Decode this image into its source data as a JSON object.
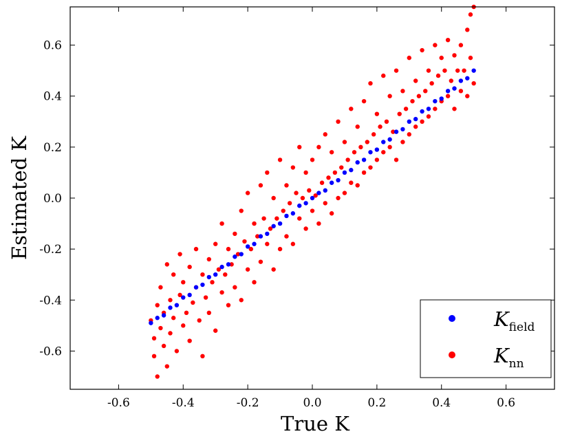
{
  "chart_data": {
    "type": "scatter",
    "title": "",
    "xlabel": "True K",
    "ylabel": "Estimated K",
    "xlim": [
      -0.75,
      0.75
    ],
    "ylim": [
      -0.75,
      0.75
    ],
    "xticks": [
      -0.6,
      -0.4,
      -0.2,
      0.0,
      0.2,
      0.4,
      0.6
    ],
    "yticks": [
      -0.6,
      -0.4,
      -0.2,
      0.0,
      0.2,
      0.4,
      0.6
    ],
    "xtick_labels": [
      "-0.6",
      "-0.4",
      "-0.2",
      "0.0",
      "0.2",
      "0.4",
      "0.6"
    ],
    "ytick_labels": [
      "-0.6",
      "-0.4",
      "-0.2",
      "0.0",
      "0.2",
      "0.4",
      "0.6"
    ],
    "grid": false,
    "legend_placement": "lower-right",
    "legend": [
      {
        "symbol": "K",
        "subscript": "field",
        "color": "#0000ff"
      },
      {
        "symbol": "K",
        "subscript": "nn",
        "color": "#ff0000"
      }
    ],
    "series": [
      {
        "color": "#ff0000",
        "points": [
          [
            -0.5,
            -0.48
          ],
          [
            -0.49,
            -0.55
          ],
          [
            -0.49,
            -0.62
          ],
          [
            -0.48,
            -0.7
          ],
          [
            -0.48,
            -0.42
          ],
          [
            -0.47,
            -0.51
          ],
          [
            -0.47,
            -0.35
          ],
          [
            -0.46,
            -0.58
          ],
          [
            -0.46,
            -0.45
          ],
          [
            -0.45,
            -0.26
          ],
          [
            -0.45,
            -0.66
          ],
          [
            -0.44,
            -0.4
          ],
          [
            -0.44,
            -0.53
          ],
          [
            -0.43,
            -0.3
          ],
          [
            -0.43,
            -0.47
          ],
          [
            -0.42,
            -0.6
          ],
          [
            -0.41,
            -0.38
          ],
          [
            -0.41,
            -0.22
          ],
          [
            -0.4,
            -0.5
          ],
          [
            -0.4,
            -0.33
          ],
          [
            -0.39,
            -0.45
          ],
          [
            -0.38,
            -0.56
          ],
          [
            -0.38,
            -0.27
          ],
          [
            -0.37,
            -0.41
          ],
          [
            -0.36,
            -0.2
          ],
          [
            -0.36,
            -0.35
          ],
          [
            -0.35,
            -0.48
          ],
          [
            -0.34,
            -0.3
          ],
          [
            -0.34,
            -0.62
          ],
          [
            -0.33,
            -0.39
          ],
          [
            -0.32,
            -0.24
          ],
          [
            -0.32,
            -0.45
          ],
          [
            -0.31,
            -0.33
          ],
          [
            -0.3,
            -0.18
          ],
          [
            -0.3,
            -0.52
          ],
          [
            -0.29,
            -0.28
          ],
          [
            -0.28,
            -0.37
          ],
          [
            -0.28,
            -0.1
          ],
          [
            -0.27,
            -0.3
          ],
          [
            -0.26,
            -0.2
          ],
          [
            -0.26,
            -0.42
          ],
          [
            -0.25,
            -0.26
          ],
          [
            -0.24,
            -0.14
          ],
          [
            -0.24,
            -0.35
          ],
          [
            -0.23,
            -0.22
          ],
          [
            -0.22,
            -0.05
          ],
          [
            -0.22,
            -0.4
          ],
          [
            -0.21,
            -0.17
          ],
          [
            -0.2,
            -0.28
          ],
          [
            -0.2,
            0.02
          ],
          [
            -0.19,
            -0.2
          ],
          [
            -0.18,
            -0.1
          ],
          [
            -0.18,
            -0.33
          ],
          [
            -0.17,
            -0.15
          ],
          [
            -0.16,
            0.05
          ],
          [
            -0.16,
            -0.25
          ],
          [
            -0.15,
            -0.08
          ],
          [
            -0.14,
            -0.18
          ],
          [
            -0.14,
            0.1
          ],
          [
            -0.13,
            -0.12
          ],
          [
            -0.12,
            -0.28
          ],
          [
            -0.12,
            0.0
          ],
          [
            -0.11,
            -0.08
          ],
          [
            -0.1,
            0.15
          ],
          [
            -0.1,
            -0.2
          ],
          [
            -0.09,
            -0.05
          ],
          [
            -0.08,
            0.05
          ],
          [
            -0.08,
            -0.15
          ],
          [
            -0.07,
            -0.02
          ],
          [
            -0.06,
            0.12
          ],
          [
            -0.06,
            -0.18
          ],
          [
            -0.05,
            0.02
          ],
          [
            -0.04,
            -0.08
          ],
          [
            -0.04,
            0.2
          ],
          [
            -0.03,
            0.0
          ],
          [
            -0.02,
            -0.12
          ],
          [
            -0.02,
            0.1
          ],
          [
            -0.01,
            0.03
          ],
          [
            0.0,
            -0.05
          ],
          [
            0.0,
            0.15
          ],
          [
            0.01,
            0.01
          ],
          [
            0.02,
            -0.1
          ],
          [
            0.02,
            0.2
          ],
          [
            0.03,
            0.06
          ],
          [
            0.04,
            -0.02
          ],
          [
            0.04,
            0.25
          ],
          [
            0.05,
            0.08
          ],
          [
            0.06,
            -0.06
          ],
          [
            0.06,
            0.18
          ],
          [
            0.07,
            0.1
          ],
          [
            0.08,
            0.0
          ],
          [
            0.08,
            0.3
          ],
          [
            0.09,
            0.12
          ],
          [
            0.1,
            0.02
          ],
          [
            0.1,
            0.22
          ],
          [
            0.11,
            0.15
          ],
          [
            0.12,
            0.06
          ],
          [
            0.12,
            0.35
          ],
          [
            0.13,
            0.18
          ],
          [
            0.14,
            0.05
          ],
          [
            0.14,
            0.28
          ],
          [
            0.15,
            0.2
          ],
          [
            0.16,
            0.1
          ],
          [
            0.16,
            0.38
          ],
          [
            0.17,
            0.22
          ],
          [
            0.18,
            0.12
          ],
          [
            0.18,
            0.45
          ],
          [
            0.19,
            0.25
          ],
          [
            0.2,
            0.15
          ],
          [
            0.2,
            0.33
          ],
          [
            0.21,
            0.28
          ],
          [
            0.22,
            0.18
          ],
          [
            0.22,
            0.48
          ],
          [
            0.23,
            0.3
          ],
          [
            0.24,
            0.2
          ],
          [
            0.24,
            0.4
          ],
          [
            0.25,
            0.26
          ],
          [
            0.26,
            0.15
          ],
          [
            0.26,
            0.5
          ],
          [
            0.27,
            0.33
          ],
          [
            0.28,
            0.22
          ],
          [
            0.28,
            0.42
          ],
          [
            0.29,
            0.35
          ],
          [
            0.3,
            0.25
          ],
          [
            0.3,
            0.55
          ],
          [
            0.31,
            0.38
          ],
          [
            0.32,
            0.28
          ],
          [
            0.32,
            0.46
          ],
          [
            0.33,
            0.4
          ],
          [
            0.34,
            0.3
          ],
          [
            0.34,
            0.58
          ],
          [
            0.35,
            0.42
          ],
          [
            0.36,
            0.32
          ],
          [
            0.36,
            0.5
          ],
          [
            0.37,
            0.45
          ],
          [
            0.38,
            0.35
          ],
          [
            0.38,
            0.6
          ],
          [
            0.39,
            0.48
          ],
          [
            0.4,
            0.38
          ],
          [
            0.4,
            0.55
          ],
          [
            0.41,
            0.5
          ],
          [
            0.42,
            0.4
          ],
          [
            0.42,
            0.62
          ],
          [
            0.43,
            0.46
          ],
          [
            0.44,
            0.35
          ],
          [
            0.44,
            0.56
          ],
          [
            0.45,
            0.5
          ],
          [
            0.46,
            0.42
          ],
          [
            0.46,
            0.6
          ],
          [
            0.47,
            0.5
          ],
          [
            0.48,
            0.4
          ],
          [
            0.48,
            0.66
          ],
          [
            0.49,
            0.55
          ],
          [
            0.49,
            0.72
          ],
          [
            0.5,
            0.45
          ],
          [
            0.5,
            0.75
          ]
        ]
      },
      {
        "color": "#0000ff",
        "points": [
          [
            -0.5,
            -0.49
          ],
          [
            -0.48,
            -0.47
          ],
          [
            -0.46,
            -0.46
          ],
          [
            -0.44,
            -0.43
          ],
          [
            -0.42,
            -0.42
          ],
          [
            -0.4,
            -0.39
          ],
          [
            -0.38,
            -0.38
          ],
          [
            -0.36,
            -0.35
          ],
          [
            -0.34,
            -0.34
          ],
          [
            -0.32,
            -0.31
          ],
          [
            -0.3,
            -0.3
          ],
          [
            -0.28,
            -0.27
          ],
          [
            -0.26,
            -0.26
          ],
          [
            -0.24,
            -0.23
          ],
          [
            -0.22,
            -0.22
          ],
          [
            -0.2,
            -0.19
          ],
          [
            -0.18,
            -0.18
          ],
          [
            -0.16,
            -0.15
          ],
          [
            -0.14,
            -0.14
          ],
          [
            -0.12,
            -0.11
          ],
          [
            -0.1,
            -0.1
          ],
          [
            -0.08,
            -0.07
          ],
          [
            -0.06,
            -0.06
          ],
          [
            -0.04,
            -0.03
          ],
          [
            -0.02,
            -0.02
          ],
          [
            0.0,
            0.0
          ],
          [
            0.02,
            0.02
          ],
          [
            0.04,
            0.03
          ],
          [
            0.06,
            0.06
          ],
          [
            0.08,
            0.07
          ],
          [
            0.1,
            0.1
          ],
          [
            0.12,
            0.11
          ],
          [
            0.14,
            0.14
          ],
          [
            0.16,
            0.15
          ],
          [
            0.18,
            0.18
          ],
          [
            0.2,
            0.19
          ],
          [
            0.22,
            0.22
          ],
          [
            0.24,
            0.23
          ],
          [
            0.26,
            0.26
          ],
          [
            0.28,
            0.27
          ],
          [
            0.3,
            0.3
          ],
          [
            0.32,
            0.31
          ],
          [
            0.34,
            0.34
          ],
          [
            0.36,
            0.35
          ],
          [
            0.38,
            0.38
          ],
          [
            0.4,
            0.39
          ],
          [
            0.42,
            0.42
          ],
          [
            0.44,
            0.43
          ],
          [
            0.46,
            0.46
          ],
          [
            0.48,
            0.47
          ],
          [
            0.5,
            0.5
          ]
        ]
      }
    ]
  }
}
